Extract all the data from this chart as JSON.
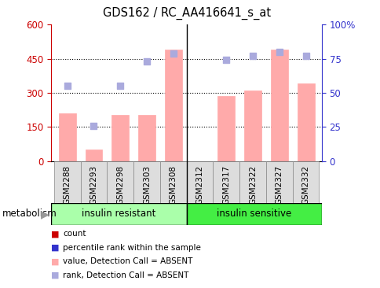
{
  "title": "GDS162 / RC_AA416641_s_at",
  "samples": [
    "GSM2288",
    "GSM2293",
    "GSM2298",
    "GSM2303",
    "GSM2308",
    "GSM2312",
    "GSM2317",
    "GSM2322",
    "GSM2327",
    "GSM2332"
  ],
  "bar_values": [
    210,
    50,
    205,
    205,
    490,
    0,
    285,
    310,
    490,
    340
  ],
  "dot_values": [
    55,
    26,
    55,
    73,
    79,
    null,
    74,
    77,
    80,
    77
  ],
  "group1_label": "insulin resistant",
  "group2_label": "insulin sensitive",
  "group1_count": 5,
  "group2_count": 5,
  "left_ylim": [
    0,
    600
  ],
  "right_ylim": [
    0,
    100
  ],
  "left_yticks": [
    0,
    150,
    300,
    450,
    600
  ],
  "right_yticks": [
    0,
    25,
    50,
    75,
    100
  ],
  "right_yticklabels": [
    "0",
    "25",
    "50",
    "75",
    "100%"
  ],
  "bar_color": "#ffaaaa",
  "dot_color": "#aaaadd",
  "dot_size": 40,
  "legend_items": [
    {
      "label": "count",
      "color": "#cc0000"
    },
    {
      "label": "percentile rank within the sample",
      "color": "#3333cc"
    },
    {
      "label": "value, Detection Call = ABSENT",
      "color": "#ffaaaa"
    },
    {
      "label": "rank, Detection Call = ABSENT",
      "color": "#aaaadd"
    }
  ],
  "metabolism_label": "metabolism",
  "bg_color": "#ffffff",
  "left_axis_color": "#cc0000",
  "right_axis_color": "#3333cc",
  "group1_color": "#aaffaa",
  "group2_color": "#44ee44"
}
